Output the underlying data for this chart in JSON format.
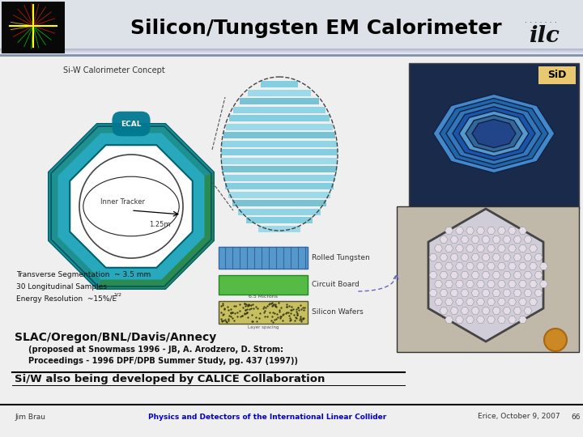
{
  "title": "Silicon/Tungsten EM Calorimeter",
  "title_fontsize": 18,
  "title_fontweight": "bold",
  "title_color": "#000000",
  "bg_color": "#ffffff",
  "sid_label": "SiD",
  "sid_bg": "#e8c870",
  "concept_label": "Si-W Calorimeter Concept",
  "ecal_label": "ECAL",
  "inner_tracker_label": "Inner Tracker",
  "radius_label": "1.25m",
  "rolled_w_label": "Rolled Tungsten",
  "circuit_label": "Circuit Board",
  "wafer_label": "Silicon Wafers",
  "microns_label": "6.5 Microns",
  "slac_text": "SLAC/Oregon/BNL/Davis/Annecy",
  "proposed_line1": "(proposed at Snowmass 1996 - JB, A. Arodzero, D. Strom:",
  "proposed_line2": "Proceedings - 1996 DPF/DPB Summer Study, pg. 437 (1997))",
  "calice_text": "Si/W also being developed by CALICE Collaboration",
  "footer_left": "Jim Brau",
  "footer_center": "Physics and Detectors of the International Linear Collider",
  "footer_right": "Erice, October 9, 2007",
  "footer_page": "66",
  "header_bg": "#dde2e8",
  "header_stripe": "#8090a8",
  "content_bg": "#efefef",
  "oct_outer_color": "#28a8bc",
  "oct_edge_color": "#006070",
  "oct_green_color": "#2a8a50",
  "tracker_edge": "#444444",
  "blue_tungsten": "#5599cc",
  "green_circuit": "#55bb44",
  "wafer_color": "#c8c060",
  "sid_dark": "#1a2a4a",
  "wafer_photo_bg": "#c0b8a8",
  "coin_color": "#cc8822"
}
